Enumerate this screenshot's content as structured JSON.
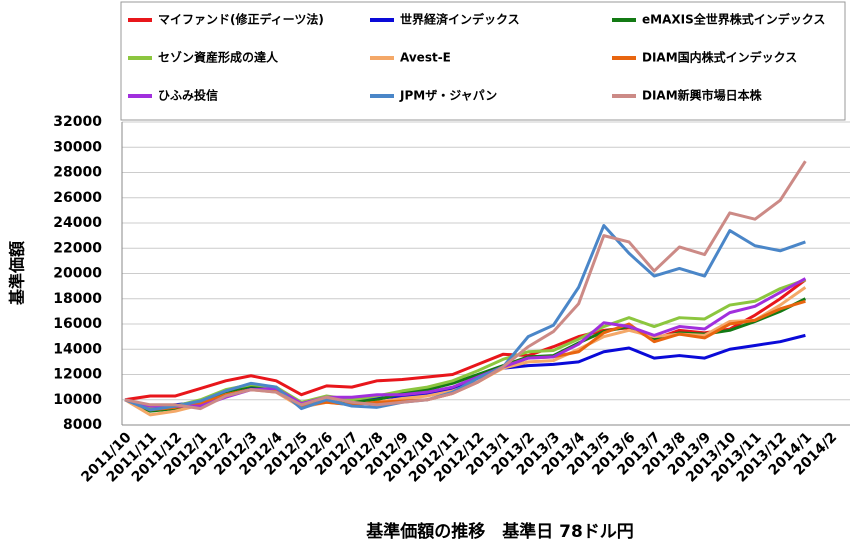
{
  "chart_data": {
    "type": "line",
    "title": "基準価額の推移　基準日 78ドル円",
    "y_label": "基準価額",
    "categories": [
      "2011/10",
      "2011/11",
      "2011/12",
      "2012/1",
      "2012/2",
      "2012/3",
      "2012/4",
      "2012/5",
      "2012/6",
      "2012/7",
      "2012/8",
      "2012/9",
      "2012/10",
      "2012/11",
      "2012/12",
      "2013/1",
      "2013/2",
      "2013/3",
      "2013/4",
      "2013/5",
      "2013/6",
      "2013/7",
      "2013/8",
      "2013/9",
      "2013/10",
      "2013/11",
      "2013/12",
      "2014/1",
      "2014/2"
    ],
    "ylim": [
      8000,
      32000
    ],
    "yticks": [
      8000,
      10000,
      12000,
      14000,
      16000,
      18000,
      20000,
      22000,
      24000,
      26000,
      28000,
      30000,
      32000
    ],
    "grid": true,
    "series": [
      {
        "name": "マイファンド(修正ディーツ法)",
        "color": "#e8161b",
        "values": [
          10000,
          10300,
          10300,
          10900,
          11500,
          11900,
          11500,
          10400,
          11100,
          11000,
          11500,
          11600,
          11800,
          12000,
          12800,
          13600,
          13500,
          14200,
          15000,
          15500,
          15700,
          14800,
          15500,
          15300,
          15600,
          16700,
          18000,
          19500,
          null
        ]
      },
      {
        "name": "世界経済インデックス",
        "color": "#0a0ad8",
        "values": [
          10000,
          9400,
          9600,
          9800,
          10500,
          11000,
          10800,
          9600,
          10000,
          9900,
          10100,
          10300,
          10500,
          10900,
          11800,
          12500,
          12700,
          12800,
          13000,
          13800,
          14100,
          13300,
          13500,
          13300,
          14000,
          14300,
          14600,
          15100,
          null
        ]
      },
      {
        "name": "eMAXIS全世界株式インデックス",
        "color": "#137a14",
        "values": [
          10000,
          9100,
          9300,
          9800,
          10600,
          11100,
          10900,
          9500,
          10100,
          9800,
          10000,
          10500,
          10800,
          11300,
          12000,
          12700,
          13400,
          13500,
          14500,
          15400,
          15800,
          14800,
          15300,
          15200,
          15500,
          16200,
          17000,
          18000,
          null
        ]
      },
      {
        "name": "セゾン資産形成の達人",
        "color": "#8cc63f",
        "values": [
          10000,
          9300,
          9500,
          10000,
          10800,
          11200,
          11000,
          9800,
          10300,
          10000,
          10300,
          10700,
          11000,
          11500,
          12300,
          13200,
          13800,
          13900,
          14800,
          15800,
          16500,
          15800,
          16500,
          16400,
          17500,
          17800,
          18800,
          19500,
          null
        ]
      },
      {
        "name": "Avest-E",
        "color": "#f4a868",
        "values": [
          10000,
          8800,
          9100,
          9600,
          10400,
          10800,
          10600,
          9400,
          9800,
          9600,
          9800,
          10100,
          10300,
          10700,
          11400,
          12500,
          13000,
          13100,
          14000,
          15000,
          15500,
          15000,
          15200,
          15100,
          16200,
          16300,
          17500,
          18900,
          null
        ]
      },
      {
        "name": "DIAM国内株式インデックス",
        "color": "#e8650f",
        "values": [
          10000,
          9200,
          9400,
          9700,
          10400,
          10800,
          10700,
          9500,
          9800,
          9600,
          9800,
          9900,
          10000,
          10500,
          11400,
          12600,
          13300,
          13400,
          13800,
          15300,
          16000,
          14600,
          15200,
          14900,
          16000,
          16300,
          17200,
          17800,
          null
        ]
      },
      {
        "name": "ひふみ投信",
        "color": "#a12fdd",
        "values": [
          10000,
          9500,
          9500,
          9500,
          10200,
          10800,
          10900,
          9700,
          10200,
          10200,
          10400,
          10400,
          10600,
          11000,
          11800,
          12600,
          13300,
          13400,
          14400,
          16100,
          15800,
          15100,
          15800,
          15600,
          16900,
          17400,
          18500,
          19600,
          null
        ]
      },
      {
        "name": "JPMザ・ジャパン",
        "color": "#4a86c8",
        "values": [
          10000,
          9200,
          9500,
          9900,
          10700,
          11300,
          11000,
          9300,
          10000,
          9500,
          9400,
          9800,
          10000,
          10600,
          11700,
          12600,
          15000,
          15900,
          18900,
          23800,
          21600,
          19800,
          20400,
          19800,
          23400,
          22200,
          21800,
          22500,
          null
        ]
      },
      {
        "name": "DIAM新興市場日本株",
        "color": "#cc8a86",
        "values": [
          10000,
          9600,
          9600,
          9300,
          10300,
          10800,
          10600,
          9600,
          10200,
          9800,
          9600,
          9800,
          10000,
          10500,
          11400,
          12600,
          14200,
          15400,
          17600,
          23000,
          22500,
          20200,
          22100,
          21500,
          24800,
          24300,
          25800,
          28900,
          null
        ]
      }
    ]
  }
}
